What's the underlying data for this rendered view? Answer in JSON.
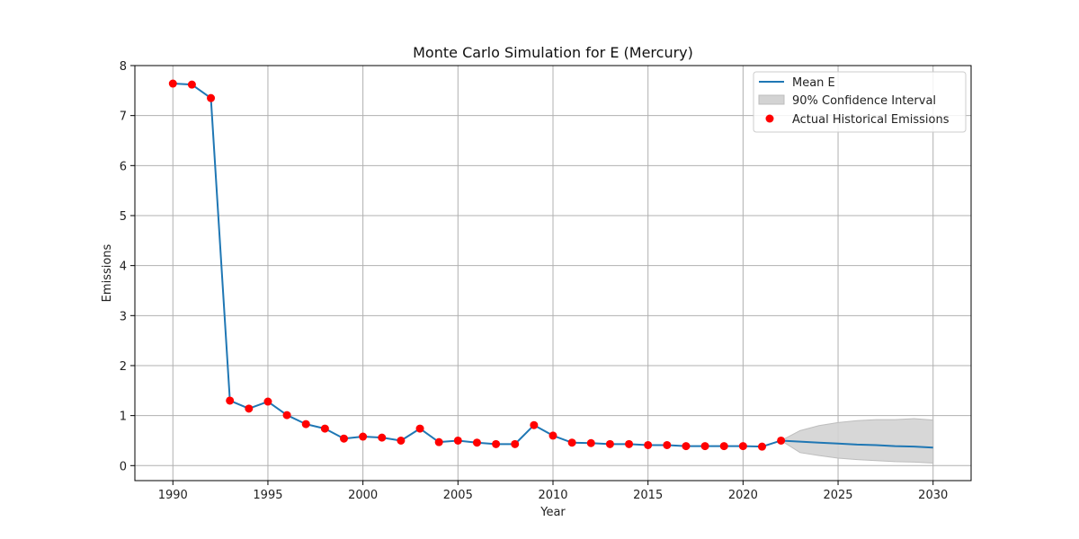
{
  "chart_data": {
    "type": "line",
    "title": "Monte Carlo Simulation for E (Mercury)",
    "xlabel": "Year",
    "ylabel": "Emissions",
    "xlim": [
      1988,
      2032
    ],
    "ylim": [
      -0.3,
      8.0
    ],
    "xticks": [
      1990,
      1995,
      2000,
      2005,
      2010,
      2015,
      2020,
      2025,
      2030
    ],
    "yticks": [
      0,
      1,
      2,
      3,
      4,
      5,
      6,
      7,
      8
    ],
    "grid": true,
    "legend_position": "top-right",
    "colors": {
      "mean_line": "#1f77b4",
      "confidence_fill": "#d3d3d3",
      "confidence_edge": "#bdbdbd",
      "historical_points": "#ff0000"
    },
    "series": [
      {
        "name": "Mean E",
        "kind": "line",
        "x": [
          1990,
          1991,
          1992,
          1993,
          1994,
          1995,
          1996,
          1997,
          1998,
          1999,
          2000,
          2001,
          2002,
          2003,
          2004,
          2005,
          2006,
          2007,
          2008,
          2009,
          2010,
          2011,
          2012,
          2013,
          2014,
          2015,
          2016,
          2017,
          2018,
          2019,
          2020,
          2021,
          2022,
          2023,
          2024,
          2025,
          2026,
          2027,
          2028,
          2029,
          2030
        ],
        "y": [
          7.64,
          7.62,
          7.35,
          1.3,
          1.14,
          1.28,
          1.01,
          0.83,
          0.74,
          0.54,
          0.58,
          0.56,
          0.5,
          0.74,
          0.47,
          0.5,
          0.46,
          0.43,
          0.43,
          0.81,
          0.6,
          0.46,
          0.45,
          0.43,
          0.43,
          0.41,
          0.41,
          0.39,
          0.39,
          0.39,
          0.39,
          0.38,
          0.5,
          0.48,
          0.46,
          0.44,
          0.42,
          0.41,
          0.39,
          0.38,
          0.36
        ]
      },
      {
        "name": "90% Confidence Interval",
        "kind": "band",
        "x": [
          2022,
          2023,
          2024,
          2025,
          2026,
          2027,
          2028,
          2029,
          2030
        ],
        "lower": [
          0.5,
          0.26,
          0.2,
          0.15,
          0.12,
          0.1,
          0.08,
          0.07,
          0.05
        ],
        "upper": [
          0.5,
          0.7,
          0.8,
          0.86,
          0.9,
          0.92,
          0.92,
          0.94,
          0.91
        ]
      },
      {
        "name": "Actual Historical Emissions",
        "kind": "scatter",
        "x": [
          1990,
          1991,
          1992,
          1993,
          1994,
          1995,
          1996,
          1997,
          1998,
          1999,
          2000,
          2001,
          2002,
          2003,
          2004,
          2005,
          2006,
          2007,
          2008,
          2009,
          2010,
          2011,
          2012,
          2013,
          2014,
          2015,
          2016,
          2017,
          2018,
          2019,
          2020,
          2021,
          2022
        ],
        "y": [
          7.64,
          7.62,
          7.35,
          1.3,
          1.14,
          1.28,
          1.01,
          0.83,
          0.74,
          0.54,
          0.58,
          0.56,
          0.5,
          0.74,
          0.47,
          0.5,
          0.46,
          0.43,
          0.43,
          0.81,
          0.6,
          0.46,
          0.45,
          0.43,
          0.43,
          0.41,
          0.41,
          0.39,
          0.39,
          0.39,
          0.39,
          0.38,
          0.5
        ]
      }
    ]
  }
}
